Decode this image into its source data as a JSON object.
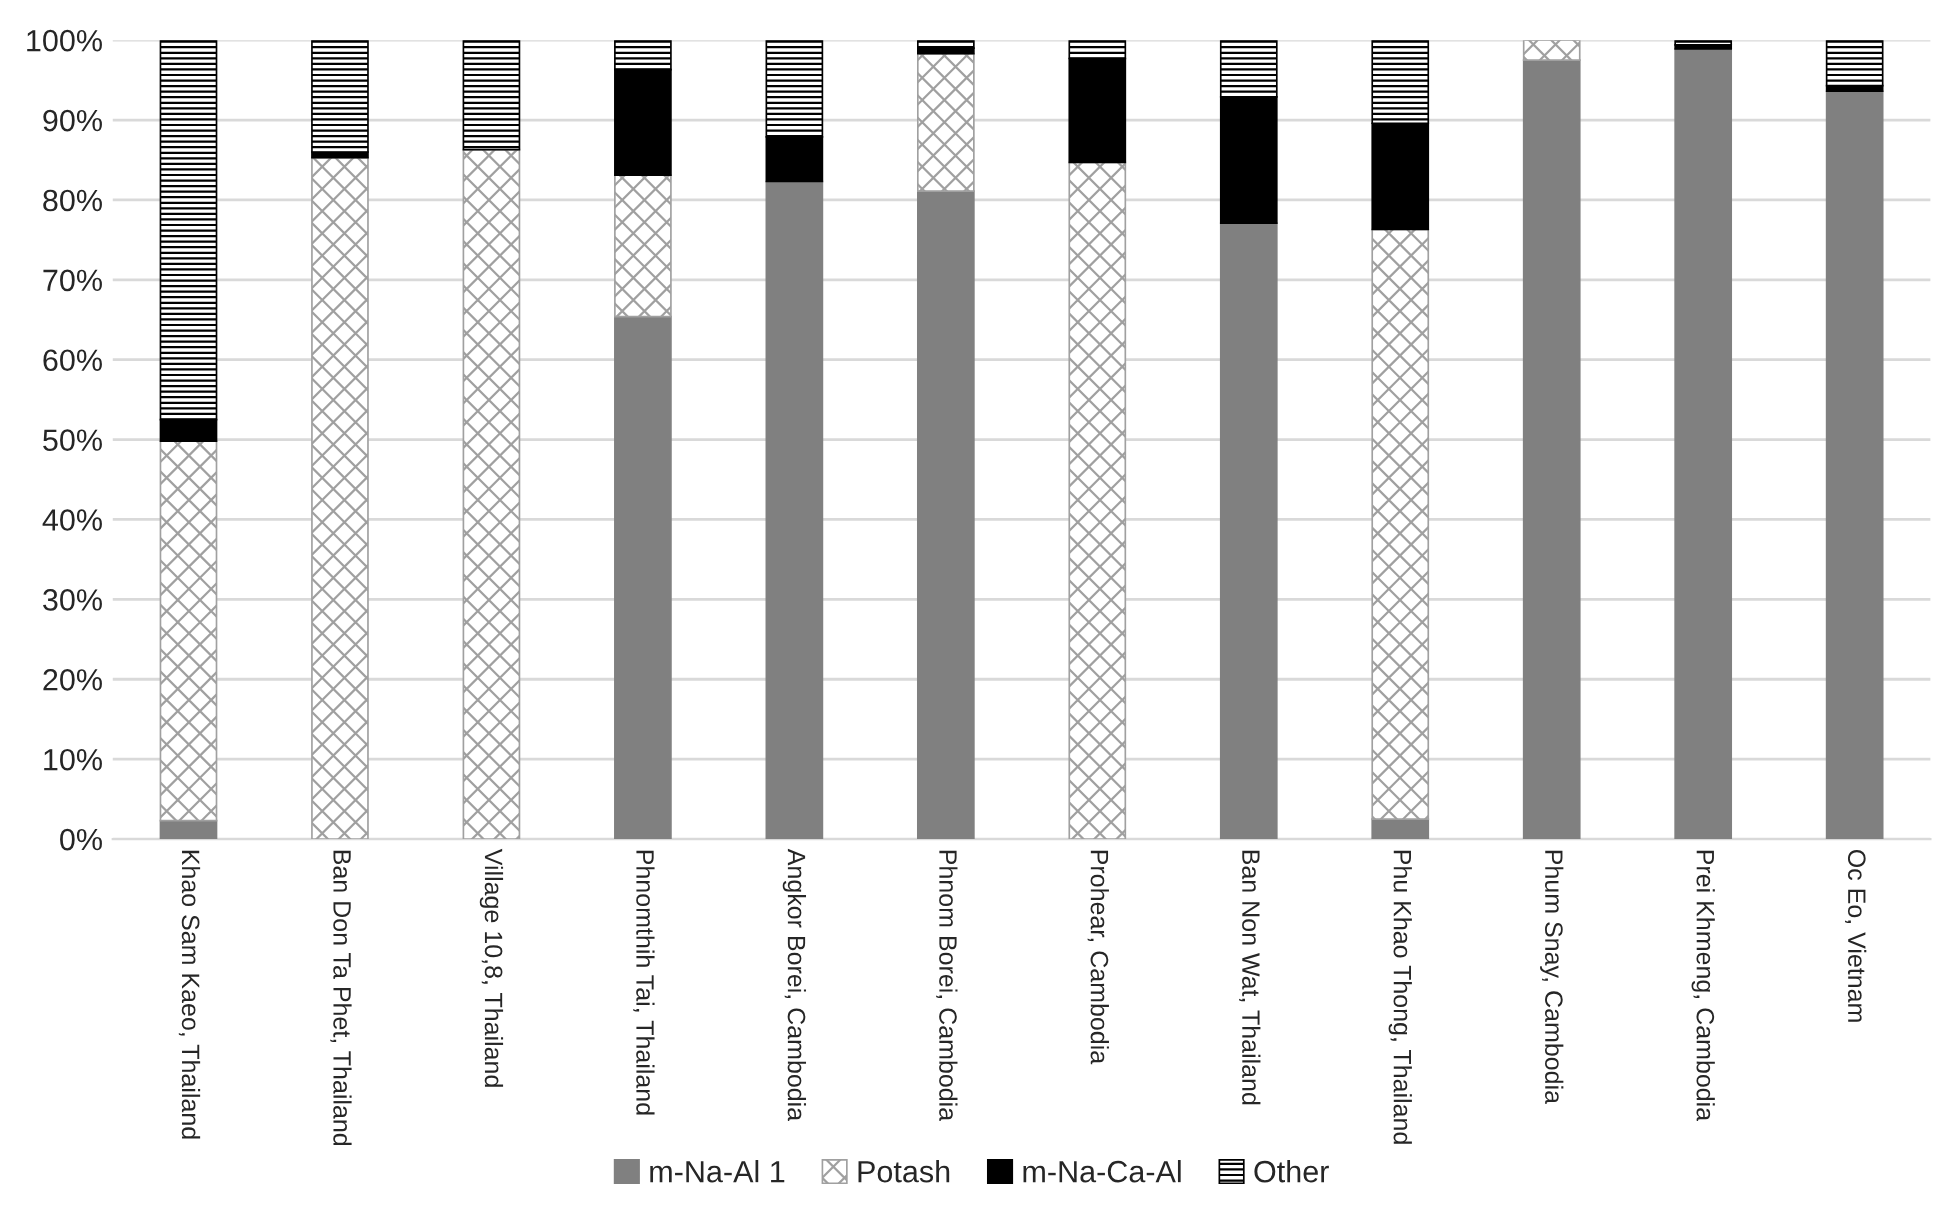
{
  "chart_data": {
    "type": "bar",
    "stacked": true,
    "categories": [
      "Khao Sam Kaeo, Thailand",
      "Ban Don Ta Phet, Thailand",
      "Village 10,8, Thailand",
      "Phnomthih Tai, Thailand",
      "Angkor Borei, Cambodia",
      "Phnom Borei, Cambodia",
      "Prohear, Cambodia",
      "Ban Non Wat, Thailand",
      "Phu Khao Thong, Thailand",
      "Phum Snay, Cambodia",
      "Prei Khmeng, Cambodia",
      "Oc Eo, Vietnam"
    ],
    "series": [
      {
        "name": "m-Na-Al 1",
        "color": "#808080",
        "values": [
          2.3,
          0,
          0,
          65.4,
          82.3,
          81.1,
          0,
          77.1,
          2.5,
          97.5,
          98.9,
          93.6
        ]
      },
      {
        "name": "Potash",
        "color": "#a0a0a0",
        "values": [
          47.5,
          85.3,
          86.3,
          17.7,
          0,
          17.2,
          84.7,
          0,
          73.8,
          2.5,
          0,
          0
        ]
      },
      {
        "name": "m-Na-Ca-Al",
        "color": "#000000",
        "values": [
          2.7,
          0.7,
          0,
          13.2,
          5.6,
          0.7,
          13.0,
          15.8,
          13.3,
          0,
          0.5,
          0.7
        ]
      },
      {
        "name": "Other",
        "color": "#000000",
        "values": [
          47.5,
          14.0,
          13.7,
          3.7,
          12.1,
          1.0,
          2.3,
          7.1,
          10.4,
          0,
          0.6,
          5.7
        ]
      }
    ],
    "ylim": [
      0,
      100
    ],
    "yticks": [
      {
        "value": 0,
        "label": "0%"
      },
      {
        "value": 10,
        "label": "10%"
      },
      {
        "value": 20,
        "label": "20%"
      },
      {
        "value": 30,
        "label": "30%"
      },
      {
        "value": 40,
        "label": "40%"
      },
      {
        "value": 50,
        "label": "50%"
      },
      {
        "value": 60,
        "label": "60%"
      },
      {
        "value": 70,
        "label": "70%"
      },
      {
        "value": 80,
        "label": "80%"
      },
      {
        "value": 90,
        "label": "90%"
      },
      {
        "value": 100,
        "label": "100%"
      }
    ],
    "grid": "y",
    "legend": "bottom"
  }
}
